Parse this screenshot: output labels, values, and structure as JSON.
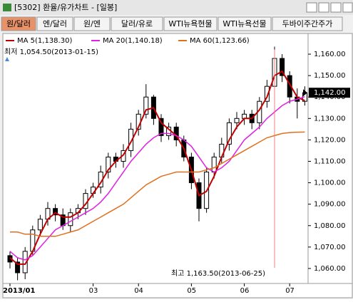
{
  "window": {
    "title": "[5302] 환율/유가차트 - [일봉]"
  },
  "tabs": [
    "원/달러",
    "엔/달러",
    "원/엔",
    "달러/유로",
    "WTI뉴욕현물",
    "WTI뉴욕선물",
    "두바이주간주가"
  ],
  "chart_data": {
    "type": "candlestick",
    "categories": [
      "2013/01",
      null,
      null,
      null,
      null,
      null,
      null,
      null,
      null,
      null,
      null,
      "03",
      null,
      null,
      null,
      null,
      null,
      "04",
      null,
      null,
      null,
      null,
      null,
      null,
      "05",
      null,
      null,
      null,
      null,
      null,
      null,
      "06",
      null,
      null,
      null,
      null,
      null,
      "07",
      null,
      null
    ],
    "open": [
      1066,
      1063,
      1058,
      1068,
      1078,
      1083,
      1088,
      1085,
      1080,
      1086,
      1088,
      1095,
      1098,
      1105,
      1112,
      1110,
      1115,
      1125,
      1132,
      1140,
      1130,
      1122,
      1126,
      1120,
      1112,
      1100,
      1088,
      1105,
      1112,
      1118,
      1128,
      1130,
      1132,
      1128,
      1138,
      1145,
      1158,
      1150,
      1140,
      1138
    ],
    "high": [
      1068,
      1065,
      1070,
      1080,
      1085,
      1091,
      1090,
      1088,
      1088,
      1090,
      1097,
      1100,
      1108,
      1114,
      1114,
      1118,
      1128,
      1134,
      1146,
      1141,
      1132,
      1128,
      1128,
      1122,
      1114,
      1102,
      1107,
      1114,
      1121,
      1130,
      1133,
      1134,
      1134,
      1140,
      1148,
      1163.5,
      1160,
      1152,
      1144,
      1145
    ],
    "low": [
      1060,
      1054.5,
      1055,
      1066,
      1075,
      1080,
      1082,
      1078,
      1077,
      1083,
      1085,
      1093,
      1095,
      1102,
      1107,
      1107,
      1112,
      1122,
      1130,
      1127,
      1119,
      1120,
      1117,
      1110,
      1097,
      1082,
      1086,
      1102,
      1109,
      1115,
      1125,
      1127,
      1125,
      1125,
      1135,
      1142,
      1147,
      1137,
      1130,
      1136
    ],
    "close": [
      1063,
      1058,
      1068,
      1078,
      1083,
      1088,
      1085,
      1080,
      1086,
      1088,
      1095,
      1098,
      1105,
      1112,
      1110,
      1115,
      1125,
      1132,
      1140,
      1130,
      1122,
      1126,
      1120,
      1112,
      1100,
      1088,
      1105,
      1112,
      1118,
      1128,
      1130,
      1132,
      1128,
      1138,
      1145,
      1158,
      1150,
      1140,
      1138,
      1142
    ],
    "lines": [
      {
        "name": "MA 5(1,138.30)",
        "color": "#c00000",
        "values": [
          1065,
          1062,
          1062,
          1068,
          1076,
          1083,
          1086,
          1084,
          1084,
          1086,
          1090,
          1095,
          1100,
          1106,
          1110,
          1113,
          1119,
          1126,
          1134,
          1135,
          1128,
          1125,
          1122,
          1116,
          1106,
          1094,
          1096,
          1103,
          1112,
          1120,
          1126,
          1130,
          1130,
          1134,
          1140,
          1150,
          1152,
          1146,
          1140,
          1138.3
        ]
      },
      {
        "name": "MA 20(1,140.18)",
        "color": "#e020e0",
        "values": [
          1068,
          1065,
          1064,
          1066,
          1070,
          1074,
          1078,
          1080,
          1082,
          1084,
          1086,
          1088,
          1091,
          1095,
          1100,
          1105,
          1110,
          1114,
          1118,
          1121,
          1123,
          1123,
          1122,
          1120,
          1117,
          1112,
          1107,
          1105,
          1107,
          1110,
          1115,
          1120,
          1123,
          1126,
          1130,
          1133,
          1136,
          1138,
          1139,
          1140.18
        ]
      },
      {
        "name": "MA 60(1,123.66)",
        "color": "#e07020",
        "values": [
          1077,
          1077,
          1076,
          1076,
          1075,
          1075,
          1075,
          1076,
          1077,
          1078,
          1080,
          1082,
          1084,
          1086,
          1088,
          1090,
          1093,
          1096,
          1099,
          1101,
          1103,
          1104,
          1105,
          1105,
          1105,
          1105,
          1106,
          1107,
          1109,
          1111,
          1113,
          1115,
          1117,
          1119,
          1121,
          1122,
          1123,
          1123.4,
          1123.6,
          1123.66
        ]
      }
    ],
    "low_label": "최저 1,054.50(2013-01-15)",
    "high_label": "최고 1,163.50(2013-06-25)",
    "last_price": {
      "value": 1142,
      "label": "1,142.00"
    },
    "ylim": [
      1053,
      1164
    ],
    "yticks": [
      {
        "value": 1060,
        "label": "1,060.00"
      },
      {
        "value": 1070,
        "label": "1,070.00"
      },
      {
        "value": 1080,
        "label": "1,080.00"
      },
      {
        "value": 1090,
        "label": "1,090.00"
      },
      {
        "value": 1100,
        "label": "1,100.00"
      },
      {
        "value": 1110,
        "label": "1,110.00"
      },
      {
        "value": 1120,
        "label": "1,120.00"
      },
      {
        "value": 1130,
        "label": "1,130.00"
      },
      {
        "value": 1140,
        "label": "1,140.00"
      },
      {
        "value": 1150,
        "label": "1,150.00"
      },
      {
        "value": 1160,
        "label": "1,160.00"
      }
    ]
  }
}
